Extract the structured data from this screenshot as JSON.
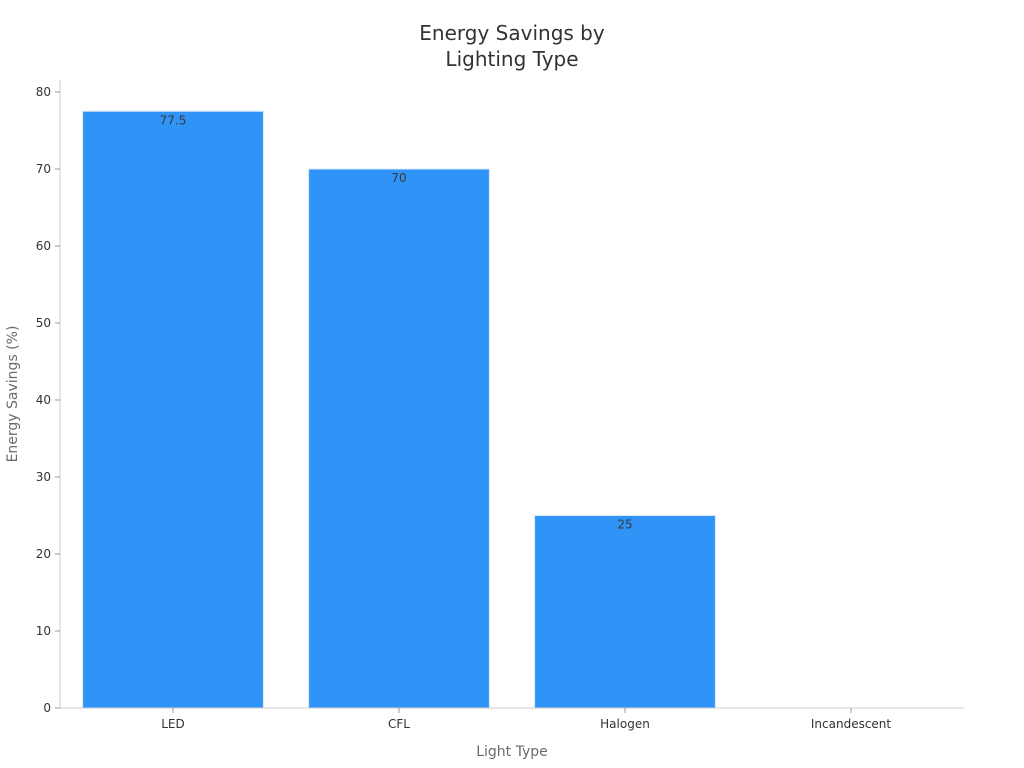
{
  "chart_data": {
    "type": "bar",
    "title": [
      "Energy Savings by",
      "Lighting Type"
    ],
    "xlabel": "Light Type",
    "ylabel": "Energy Savings (%)",
    "categories": [
      "LED",
      "CFL",
      "Halogen",
      "Incandescent"
    ],
    "values": [
      77.5,
      70,
      25,
      0
    ],
    "data_labels": [
      "77.5",
      "70",
      "25",
      ""
    ],
    "ylim": [
      0,
      80
    ],
    "yticks": [
      0,
      10,
      20,
      30,
      40,
      50,
      60,
      70,
      80
    ],
    "ytick_labels": [
      "0",
      "10",
      "20",
      "30",
      "40",
      "50",
      "60",
      "70",
      "80"
    ],
    "grid": false,
    "legend": "none",
    "colors": {
      "bar": "#2f93f8",
      "bar_edge": "#d8e8f8"
    }
  }
}
